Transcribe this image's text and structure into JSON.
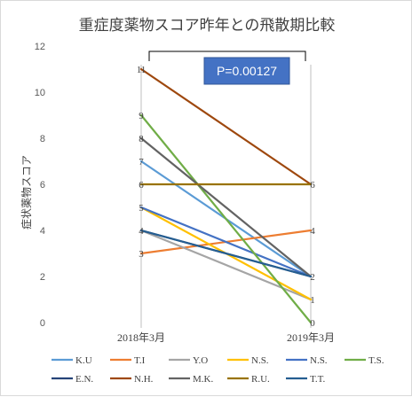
{
  "chart_data": {
    "type": "line",
    "title": "重症度薬物スコア昨年との飛散期比較",
    "ylabel": "症状薬物スコア",
    "xlabel": "",
    "categories": [
      "2018年3月",
      "2019年3月"
    ],
    "ylim": [
      0,
      12
    ],
    "yticks": [
      0,
      2,
      4,
      6,
      8,
      10,
      12
    ],
    "grid": false,
    "legend_position": "bottom",
    "annotation": "P=0.00127",
    "series": [
      {
        "name": "K.U",
        "values": [
          7,
          2
        ],
        "color": "#5b9bd5"
      },
      {
        "name": "T.I",
        "values": [
          3,
          4
        ],
        "color": "#ed7d31"
      },
      {
        "name": "Y.O",
        "values": [
          4,
          1
        ],
        "color": "#a5a5a5"
      },
      {
        "name": "N.S.",
        "values": [
          5,
          1
        ],
        "color": "#ffc000"
      },
      {
        "name": "N.S.",
        "values": [
          5,
          2
        ],
        "color": "#4472c4"
      },
      {
        "name": "T.S.",
        "values": [
          9,
          0
        ],
        "color": "#70ad47"
      },
      {
        "name": "E.N.",
        "values": [
          4,
          2
        ],
        "color": "#264478"
      },
      {
        "name": "N.H.",
        "values": [
          11,
          6
        ],
        "color": "#9e480e"
      },
      {
        "name": "M.K.",
        "values": [
          8,
          2
        ],
        "color": "#636363"
      },
      {
        "name": "R.U.",
        "values": [
          6,
          6
        ],
        "color": "#997300"
      },
      {
        "name": "T.T.",
        "values": [
          4,
          2
        ],
        "color": "#255e91"
      }
    ]
  },
  "point_labels": {
    "left": [
      "11",
      "9",
      "8",
      "7",
      "6",
      "5",
      "4",
      "3"
    ],
    "right": [
      "6",
      "4",
      "2",
      "1",
      "0"
    ]
  }
}
